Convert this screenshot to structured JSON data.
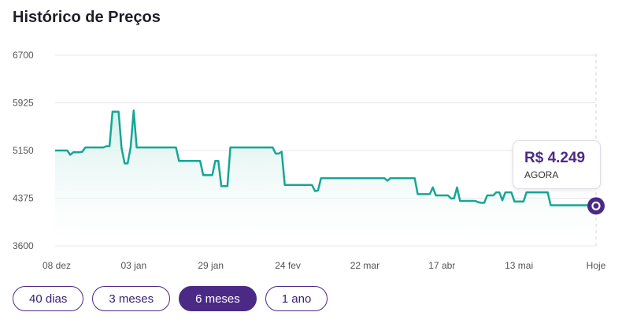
{
  "page": {
    "title": "Histórico de Preços"
  },
  "chart_data": {
    "type": "line",
    "title": "Histórico de Preços",
    "xlabel": "",
    "ylabel": "",
    "ylim": [
      3600,
      6700
    ],
    "y_ticks": [
      6700,
      5925,
      5150,
      4375,
      3600
    ],
    "x_ticks": [
      "08 dez",
      "03 jan",
      "29 jan",
      "24 fev",
      "22 mar",
      "17 abr",
      "13 mai",
      "Hoje"
    ],
    "grid": true,
    "colors": {
      "line": "#16a696",
      "fill_top": "#d2f0ea",
      "marker": "#4b2a86"
    },
    "series": [
      {
        "values": [
          5150,
          5150,
          5150,
          5150,
          5150,
          5080,
          5120,
          5120,
          5120,
          5130,
          5200,
          5200,
          5200,
          5200,
          5200,
          5200,
          5200,
          5220,
          5220,
          5780,
          5780,
          5780,
          5190,
          4940,
          4940,
          5200,
          5800,
          5200,
          5200,
          5200,
          5200,
          5200,
          5200,
          5200,
          5200,
          5200,
          5200,
          5200,
          5200,
          5200,
          5200,
          4980,
          4980,
          4980,
          4980,
          4980,
          4980,
          4980,
          4980,
          4750,
          4750,
          4750,
          4750,
          4980,
          4980,
          4570,
          4570,
          4570,
          5200,
          5200,
          5200,
          5200,
          5200,
          5200,
          5200,
          5200,
          5200,
          5200,
          5200,
          5200,
          5200,
          5200,
          5200,
          5100,
          5100,
          5130,
          4590,
          4590,
          4590,
          4590,
          4590,
          4590,
          4590,
          4590,
          4590,
          4590,
          4490,
          4500,
          4700,
          4700,
          4700,
          4700,
          4700,
          4700,
          4700,
          4700,
          4700,
          4700,
          4700,
          4700,
          4700,
          4700,
          4700,
          4700,
          4700,
          4700,
          4700,
          4700,
          4700,
          4700,
          4660,
          4700,
          4700,
          4700,
          4700,
          4700,
          4700,
          4700,
          4700,
          4700,
          4440,
          4440,
          4440,
          4440,
          4440,
          4550,
          4420,
          4420,
          4420,
          4420,
          4420,
          4370,
          4370,
          4550,
          4330,
          4330,
          4330,
          4330,
          4330,
          4330,
          4310,
          4300,
          4300,
          4420,
          4420,
          4420,
          4470,
          4470,
          4340,
          4470,
          4470,
          4470,
          4320,
          4320,
          4320,
          4320,
          4470,
          4470,
          4470,
          4470,
          4470,
          4470,
          4470,
          4470,
          4260,
          4260,
          4260,
          4260,
          4260,
          4260,
          4260,
          4260,
          4260,
          4260,
          4260,
          4260,
          4260,
          4260,
          4260,
          4249
        ]
      }
    ],
    "current": {
      "price_label": "R$ 4.249",
      "price_caption": "AGORA",
      "value": 4249
    }
  },
  "ranges": [
    {
      "label": "40 dias",
      "active": false
    },
    {
      "label": "3 meses",
      "active": false
    },
    {
      "label": "6 meses",
      "active": true
    },
    {
      "label": "1 ano",
      "active": false
    }
  ]
}
